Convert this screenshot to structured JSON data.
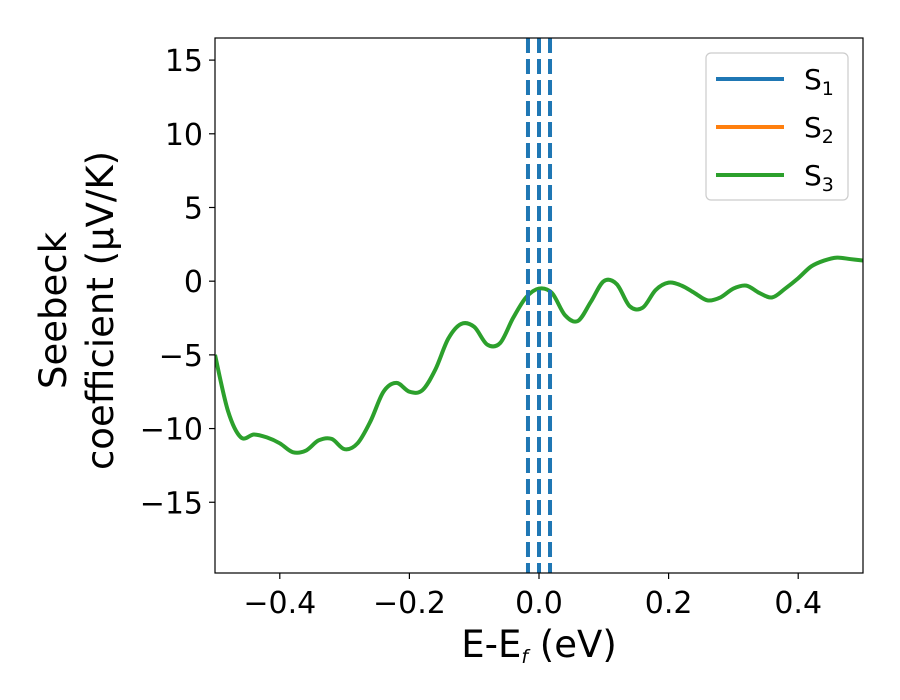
{
  "chart_data": {
    "type": "line",
    "xlabel": {
      "main": "E-E",
      "sub": "f",
      "unit": " (eV)"
    },
    "ylabel": {
      "line1": "Seebeck",
      "line2": "coefficient  (μV/K)"
    },
    "xlim": [
      -0.5,
      0.5
    ],
    "ylim": [
      -19.8,
      16.5
    ],
    "xticks": [
      -0.4,
      -0.2,
      0.0,
      0.2,
      0.4
    ],
    "xtick_labels": [
      "−0.4",
      "−0.2",
      "0.0",
      "0.2",
      "0.4"
    ],
    "yticks": [
      15,
      10,
      5,
      0,
      -5,
      -10,
      -15
    ],
    "ytick_labels": [
      "15",
      "10",
      "5",
      "0",
      "−5",
      "−10",
      "−15"
    ],
    "grid": false,
    "legend_position": "top-right",
    "legend": [
      {
        "base": "S",
        "sub": "1",
        "color": "#1f77b4"
      },
      {
        "base": "S",
        "sub": "2",
        "color": "#ff7f0e"
      },
      {
        "base": "S",
        "sub": "3",
        "color": "#2ca02c"
      }
    ],
    "vlines": [
      {
        "x": 0.0,
        "style": "dashed",
        "color": "#000000"
      },
      {
        "x": -0.017,
        "style": "dashed",
        "color": "#1f77b4"
      },
      {
        "x": 0.0,
        "style": "dashed",
        "color": "#1f77b4"
      },
      {
        "x": 0.017,
        "style": "dashed",
        "color": "#1f77b4"
      }
    ],
    "series": [
      {
        "color": "#2ca02c",
        "x": [
          -0.5,
          -0.48,
          -0.46,
          -0.44,
          -0.42,
          -0.4,
          -0.38,
          -0.36,
          -0.34,
          -0.32,
          -0.3,
          -0.28,
          -0.26,
          -0.24,
          -0.22,
          -0.2,
          -0.18,
          -0.16,
          -0.14,
          -0.12,
          -0.1,
          -0.08,
          -0.06,
          -0.04,
          -0.02,
          0.0,
          0.02,
          0.04,
          0.06,
          0.08,
          0.1,
          0.12,
          0.14,
          0.16,
          0.18,
          0.2,
          0.22,
          0.24,
          0.26,
          0.28,
          0.3,
          0.32,
          0.34,
          0.36,
          0.38,
          0.4,
          0.42,
          0.44,
          0.46,
          0.48,
          0.5
        ],
        "y": [
          -5.0,
          -8.8,
          -10.6,
          -10.4,
          -10.6,
          -11.0,
          -11.6,
          -11.5,
          -10.8,
          -10.7,
          -11.4,
          -11.0,
          -9.5,
          -7.5,
          -6.9,
          -7.5,
          -7.4,
          -6.0,
          -3.9,
          -2.9,
          -3.1,
          -4.3,
          -4.2,
          -2.5,
          -1.1,
          -0.5,
          -0.8,
          -2.3,
          -2.7,
          -1.4,
          0.0,
          -0.2,
          -1.7,
          -1.8,
          -0.6,
          -0.1,
          -0.3,
          -0.8,
          -1.3,
          -1.1,
          -0.5,
          -0.3,
          -0.8,
          -1.1,
          -0.5,
          0.2,
          1.0,
          1.4,
          1.6,
          1.5,
          1.4
        ]
      }
    ]
  }
}
